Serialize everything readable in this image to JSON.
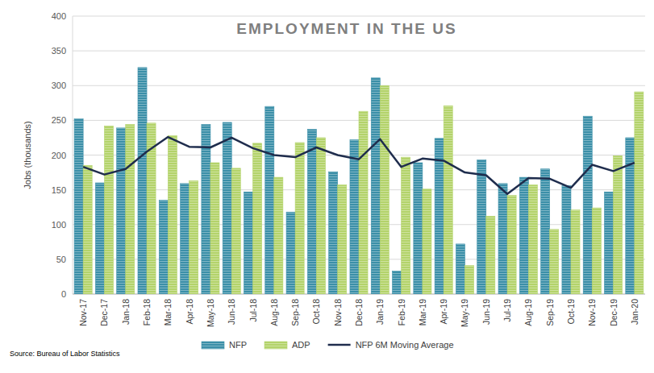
{
  "chart_data": {
    "type": "bar",
    "title": "EMPLOYMENT IN THE US",
    "y_label": "Jobs (thousands)",
    "source": "Source: Bureau of Labor Statistics",
    "categories": [
      "Nov-17",
      "Dec-17",
      "Jan-18",
      "Feb-18",
      "Mar-18",
      "Apr-18",
      "May-18",
      "Jun-18",
      "Jul-18",
      "Aug-18",
      "Sep-18",
      "Oct-18",
      "Nov-18",
      "Dec-18",
      "Jan-19",
      "Feb-19",
      "Mar-19",
      "Apr-19",
      "May-19",
      "Jun-19",
      "Jul-19",
      "Aug-19",
      "Sep-19",
      "Oct-19",
      "Nov-19",
      "Dec-19",
      "Jan-20"
    ],
    "series": [
      {
        "name": "NFP",
        "type": "bar",
        "color": "#3b8fa8",
        "values": [
          252,
          160,
          239,
          326,
          135,
          159,
          244,
          247,
          147,
          270,
          118,
          237,
          176,
          222,
          311,
          33,
          189,
          224,
          72,
          193,
          159,
          168,
          180,
          156,
          256,
          147,
          225
        ]
      },
      {
        "name": "ADP",
        "type": "bar",
        "color": "#b3d36a",
        "values": [
          185,
          242,
          244,
          246,
          228,
          163,
          189,
          181,
          217,
          168,
          218,
          225,
          157,
          263,
          300,
          197,
          151,
          271,
          41,
          112,
          142,
          157,
          93,
          121,
          124,
          199,
          291
        ]
      },
      {
        "name": "NFP 6M Moving Average",
        "type": "line",
        "color": "#1f2d4d",
        "values": [
          183,
          172,
          180,
          205,
          226,
          212,
          211,
          225,
          210,
          200,
          197,
          211,
          200,
          194,
          223,
          183,
          195,
          192,
          175,
          171,
          144,
          167,
          166,
          153,
          186,
          177,
          189
        ]
      }
    ],
    "ylim": [
      0,
      400
    ],
    "yticks": [
      0,
      50,
      100,
      150,
      200,
      250,
      300,
      350,
      400
    ],
    "grid": true,
    "legend": "bottom"
  }
}
